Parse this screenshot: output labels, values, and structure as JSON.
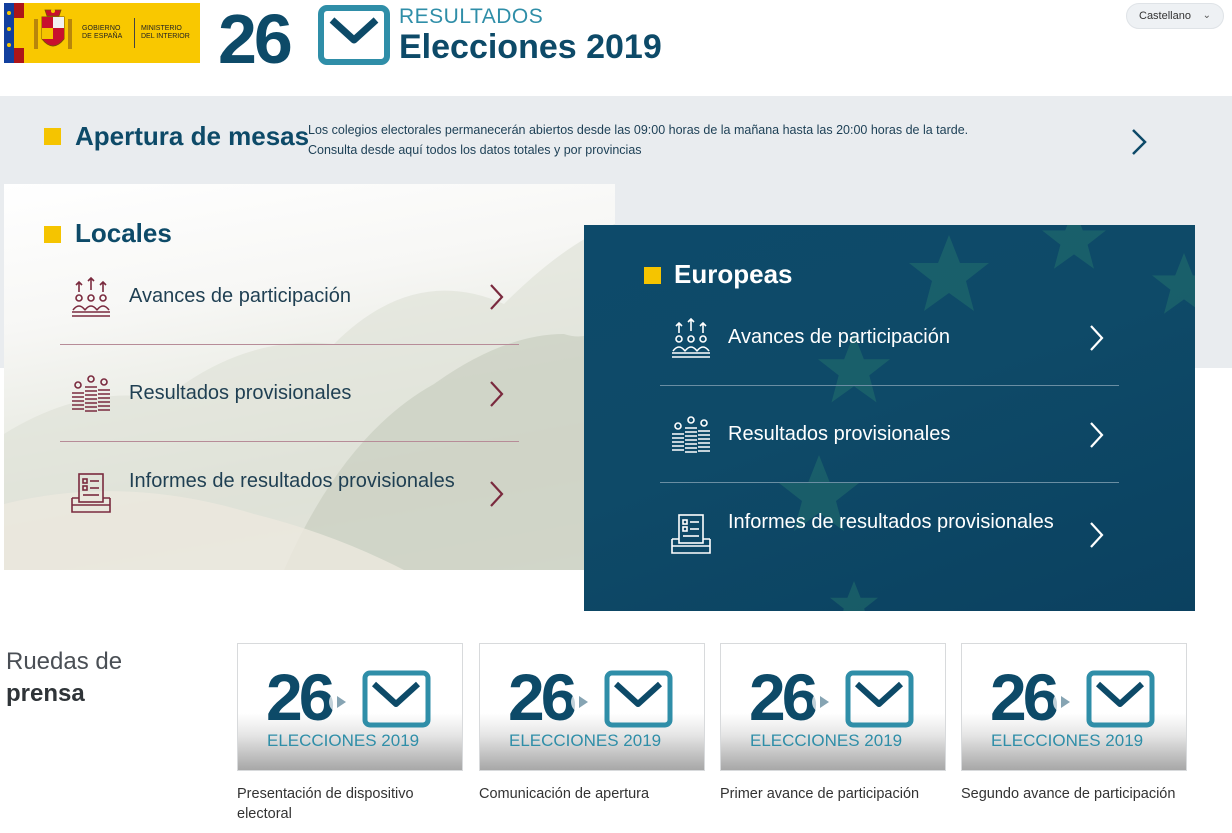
{
  "header": {
    "gov_line1": "GOBIERNO",
    "gov_line2": "DE ESPAÑA",
    "min_line1": "MINISTERIO",
    "min_line2": "DEL INTERIOR",
    "brand_number": "26",
    "brand_subtitle": "RESULTADOS",
    "brand_title": "Elecciones 2019",
    "language": "Castellano"
  },
  "apertura": {
    "title": "Apertura de mesas",
    "line1": "Los colegios electorales permanecerán abiertos desde las 09:00 horas de la mañana hasta las 20:00 horas de la tarde.",
    "line2": "Consulta desde aquí todos los datos totales y por provincias"
  },
  "locales": {
    "title": "Locales",
    "items": [
      {
        "label": "Avances de participación",
        "icon": "participation-icon"
      },
      {
        "label": "Resultados provisionales",
        "icon": "results-icon"
      },
      {
        "label": "Informes de resultados provisionales",
        "icon": "report-icon"
      }
    ]
  },
  "europeas": {
    "title": "Europeas",
    "items": [
      {
        "label": "Avances de participación",
        "icon": "participation-icon"
      },
      {
        "label": "Resultados provisionales",
        "icon": "results-icon"
      },
      {
        "label": "Informes de resultados provisionales",
        "icon": "report-icon"
      }
    ]
  },
  "ruedas": {
    "title_light": "Ruedas de",
    "title_bold": "prensa",
    "card_number": "26",
    "card_text": "ELECCIONES 2019",
    "items": [
      {
        "caption": "Presentación de dispositivo electoral"
      },
      {
        "caption": "Comunicación de apertura"
      },
      {
        "caption": "Primer avance de participación"
      },
      {
        "caption": "Segundo avance de participación"
      }
    ]
  },
  "colors": {
    "navy": "#0d4a68",
    "teal": "#2f8ea8",
    "yellow": "#f5c400",
    "maroon": "#7a2a3e"
  }
}
